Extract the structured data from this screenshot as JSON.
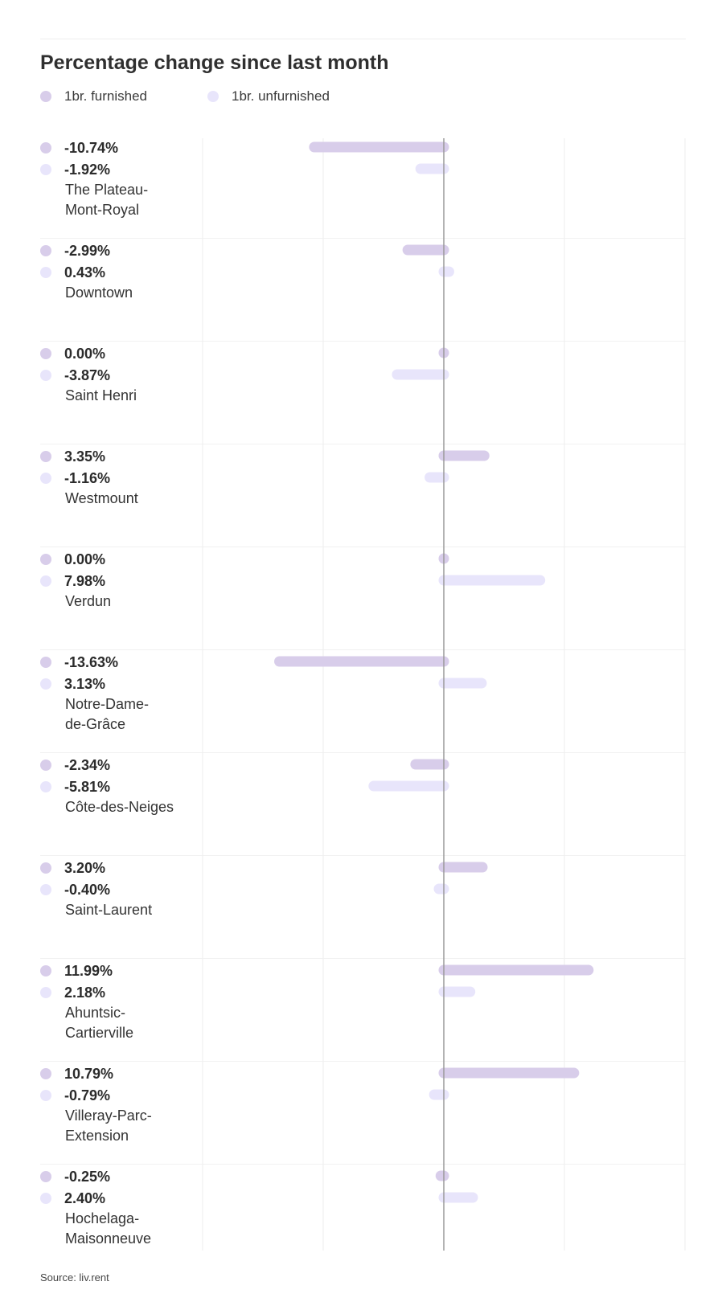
{
  "title": "Percentage change since last month",
  "legend": [
    {
      "label": "1br. furnished",
      "color": "#d8cdea"
    },
    {
      "label": "1br. unfurnished",
      "color": "#e8e5fb"
    }
  ],
  "source": "Source: liv.rent",
  "chart_data": {
    "type": "bar",
    "orientation": "horizontal",
    "title": "Percentage change since last month",
    "legend_position": "top-left",
    "grid": true,
    "xlim": [
      -20,
      20
    ],
    "categories": [
      "The Plateau-Mont-Royal",
      "Downtown",
      "Saint Henri",
      "Westmount",
      "Verdun",
      "Notre-Dame-de-Grâce",
      "Côte-des-Neiges",
      "Saint-Laurent",
      "Ahuntsic-Cartierville",
      "Villeray-Parc-Extension",
      "Hochelaga-Maisonneuve"
    ],
    "category_labels": [
      [
        "The Plateau-",
        "Mont-Royal"
      ],
      [
        "Downtown"
      ],
      [
        "Saint Henri"
      ],
      [
        "Westmount"
      ],
      [
        "Verdun"
      ],
      [
        "Notre-Dame-",
        "de-Grâce"
      ],
      [
        "Côte-des-Neiges"
      ],
      [
        "Saint-Laurent"
      ],
      [
        "Ahuntsic-",
        "Cartierville"
      ],
      [
        "Villeray-Parc-",
        "Extension"
      ],
      [
        "Hochelaga-",
        "Maisonneuve"
      ]
    ],
    "series": [
      {
        "name": "1br. furnished",
        "color": "#d8cdea",
        "values": [
          -10.74,
          -2.99,
          0.0,
          3.35,
          0.0,
          -13.63,
          -2.34,
          3.2,
          11.99,
          10.79,
          -0.25
        ],
        "labels": [
          "-10.74%",
          "-2.99%",
          "0.00%",
          "3.35%",
          "0.00%",
          "-13.63%",
          "-2.34%",
          "3.20%",
          "11.99%",
          "10.79%",
          "-0.25%"
        ]
      },
      {
        "name": "1br. unfurnished",
        "color": "#e8e5fb",
        "values": [
          -1.92,
          0.43,
          -3.87,
          -1.16,
          7.98,
          3.13,
          -5.81,
          -0.4,
          2.18,
          -0.79,
          2.4
        ],
        "labels": [
          "-1.92%",
          "0.43%",
          "-3.87%",
          "-1.16%",
          "7.98%",
          "3.13%",
          "-5.81%",
          "-0.40%",
          "2.18%",
          "-0.79%",
          "2.40%"
        ]
      }
    ]
  }
}
